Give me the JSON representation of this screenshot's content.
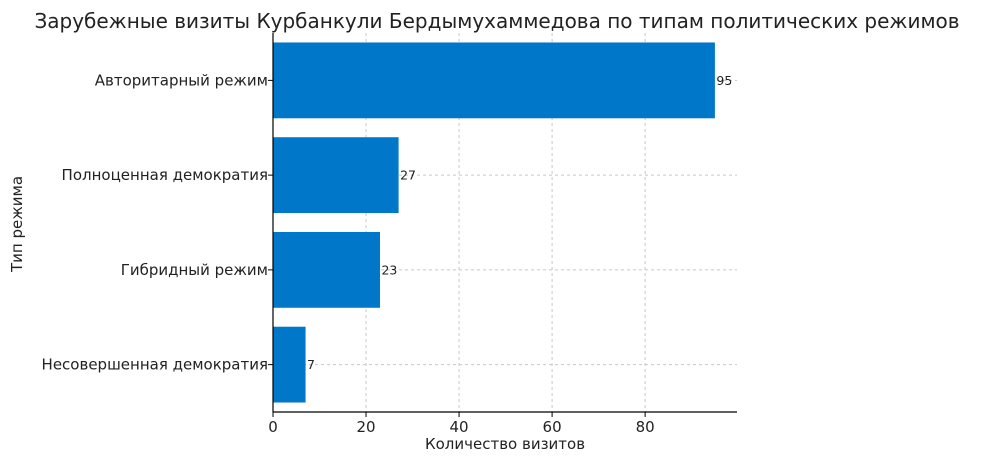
{
  "chart_data": {
    "type": "bar",
    "orientation": "horizontal",
    "title": "Зарубежные визиты Курбанкули Бердымухаммедова по типам политических режимов",
    "xlabel": "Количество визитов",
    "ylabel": "Тип режима",
    "xlim": [
      0,
      99.75
    ],
    "xticks": [
      0,
      20,
      40,
      60,
      80
    ],
    "grid": true,
    "bar_color": "#0077c8",
    "categories": [
      "Авторитарный режим",
      "Полноценная демократия",
      "Гибридный режим",
      "Несовершенная демократия"
    ],
    "values": [
      95,
      27,
      23,
      7
    ]
  }
}
